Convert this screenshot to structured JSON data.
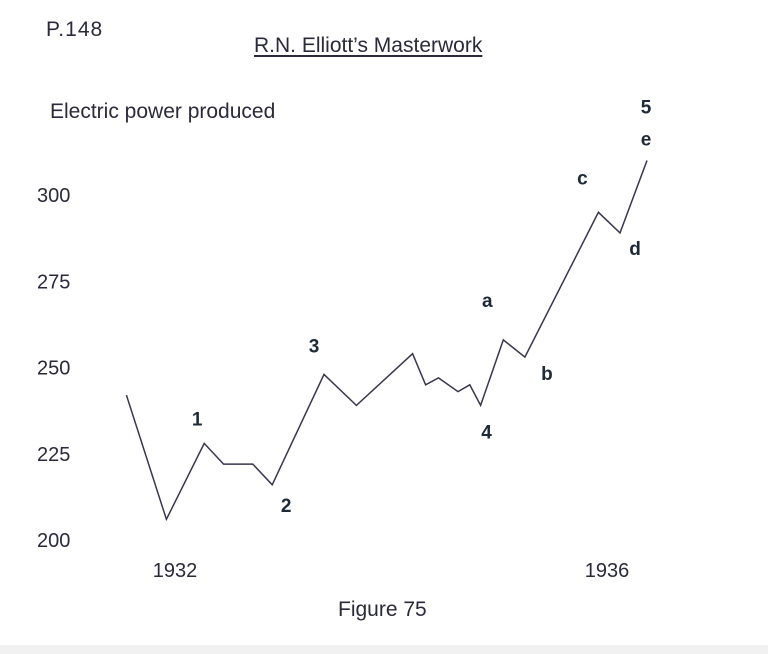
{
  "page_number": "P.148",
  "title": "R.N. Elliott’s Masterwork",
  "caption": "Figure 75",
  "chart_data": {
    "type": "line",
    "ylabel": "Electric power produced",
    "ylim": [
      200,
      310
    ],
    "y_ticks": [
      200,
      225,
      250,
      275,
      300
    ],
    "x_ticks": [
      "1932",
      "1936"
    ],
    "x_range": [
      1931.45,
      1936.1
    ],
    "grid": false,
    "line_color": "#3a3550",
    "series": [
      {
        "x": [
          1931.55,
          1931.92,
          1932.27,
          1932.45,
          1932.72,
          1932.9,
          1933.38,
          1933.68,
          1934.2,
          1934.32,
          1934.44,
          1934.62,
          1934.73,
          1934.83,
          1935.04,
          1935.24,
          1935.92,
          1936.12,
          1936.37
        ],
        "y": [
          242,
          206,
          228,
          222,
          222,
          216,
          248,
          239,
          254,
          245,
          247,
          243,
          245,
          239,
          258,
          253,
          295,
          289,
          310
        ]
      }
    ],
    "wave_labels": [
      {
        "text": "1",
        "x": 1932.27,
        "y": 228
      },
      {
        "text": "2",
        "x": 1932.9,
        "y": 216
      },
      {
        "text": "3",
        "x": 1933.38,
        "y": 248
      },
      {
        "text": "4",
        "x": 1934.83,
        "y": 239
      },
      {
        "text": "a",
        "x": 1935.04,
        "y": 258
      },
      {
        "text": "b",
        "x": 1935.24,
        "y": 253
      },
      {
        "text": "c",
        "x": 1935.92,
        "y": 295
      },
      {
        "text": "d",
        "x": 1936.12,
        "y": 289
      },
      {
        "text": "e",
        "x": 1936.37,
        "y": 310
      },
      {
        "text": "5",
        "x": 1936.37,
        "y": 310
      }
    ]
  }
}
